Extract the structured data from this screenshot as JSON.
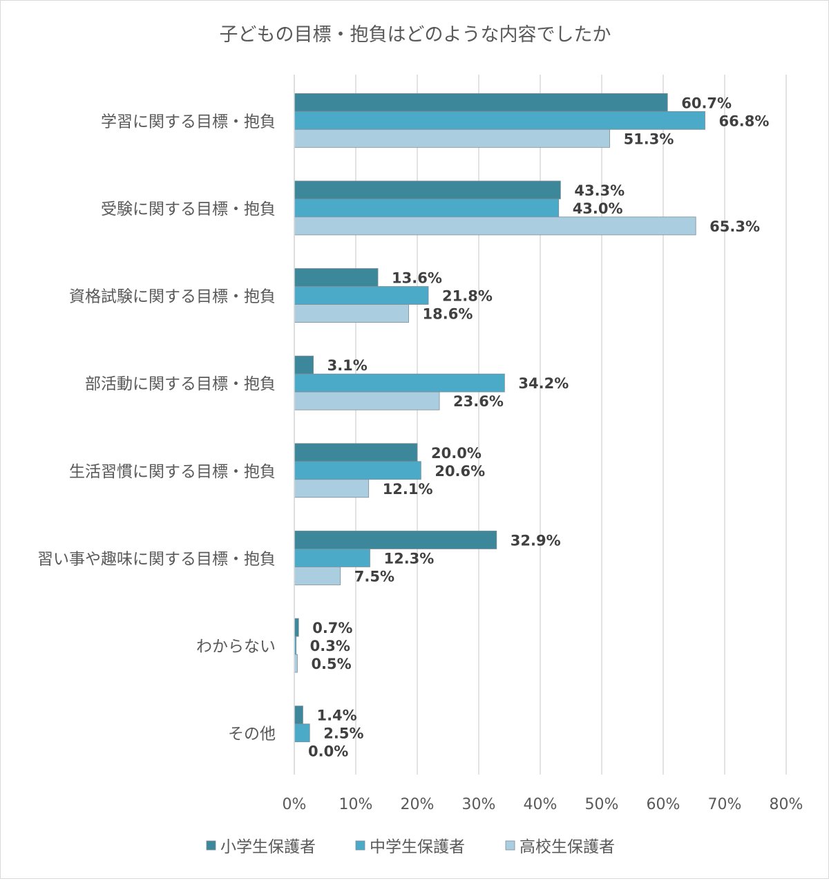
{
  "chart_data": {
    "type": "bar",
    "orientation": "horizontal",
    "title": "子どもの目標・抱負はどのような内容でしたか",
    "categories": [
      "学習に関する目標・抱負",
      "受験に関する目標・抱負",
      "資格試験に関する目標・抱負",
      "部活動に関する目標・抱負",
      "生活習慣に関する目標・抱負",
      "習い事や趣味に関する目標・抱負",
      "わからない",
      "その他"
    ],
    "series": [
      {
        "name": "小学生保護者",
        "color": "#3d879b",
        "values": [
          60.7,
          43.3,
          13.6,
          3.1,
          20.0,
          32.9,
          0.7,
          1.4
        ]
      },
      {
        "name": "中学生保護者",
        "color": "#4aaac7",
        "values": [
          66.8,
          43.0,
          21.8,
          34.2,
          20.6,
          12.3,
          0.3,
          2.5
        ]
      },
      {
        "name": "高校生保護者",
        "color": "#abcde0",
        "values": [
          51.3,
          65.3,
          18.6,
          23.6,
          12.1,
          7.5,
          0.5,
          0.0
        ]
      }
    ],
    "xlim": [
      0,
      80
    ],
    "xticks": [
      "0%",
      "10%",
      "20%",
      "30%",
      "40%",
      "50%",
      "60%",
      "70%",
      "80%"
    ],
    "value_suffix": "%",
    "grid": true,
    "legend": "bottom"
  }
}
